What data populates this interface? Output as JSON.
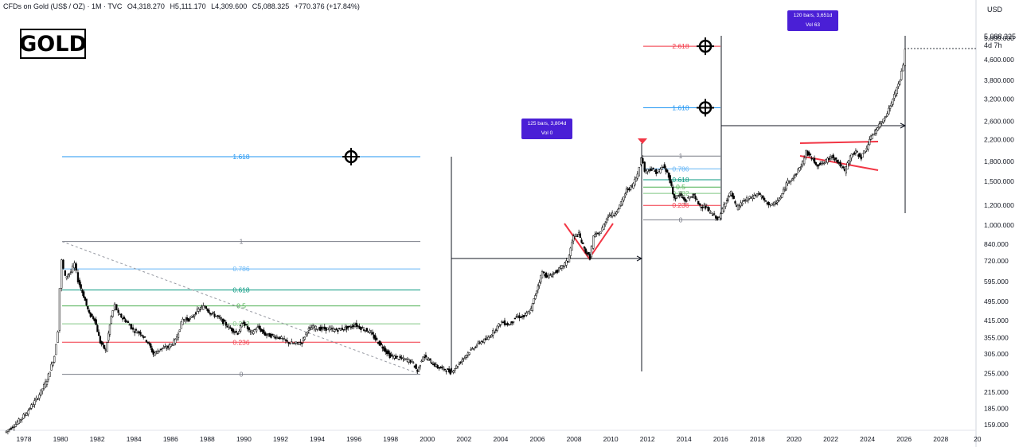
{
  "header": {
    "symbol": "CFDs on Gold (US$ / OZ) · 1M · TVC",
    "open": "O4,318.270",
    "high": "H5,111.170",
    "low": "L4,309.600",
    "close": "C5,088.325",
    "change": "+770.376 (+17.84%)"
  },
  "logo_text": "GOLD",
  "currency": "USD",
  "price_label": {
    "value": "5,088.325",
    "countdown": "4d 7h"
  },
  "measures": [
    {
      "bars": "125 bars, 3,804d",
      "vol": "Vol 0"
    },
    {
      "bars": "120 bars, 3,651d",
      "vol": "Vol 63"
    }
  ],
  "colors": {
    "bull": "#ffffff",
    "bear": "#000000",
    "fib_1": "#787b86",
    "fib_786": "#64b5f6",
    "fib_618": "#089981",
    "fib_5": "#4caf50",
    "fib_382": "#81c784",
    "fib_236": "#f23645",
    "fib_ext": "#2196f3",
    "fib_2618": "#f23645",
    "pattern": "#f23645",
    "measure_bg": "#4a1fd6"
  },
  "chart_data": {
    "type": "candlestick",
    "title": "GOLD",
    "y_scale": "log",
    "y_ticks": [
      "5,600.000",
      "4,600.000",
      "3,800.000",
      "3,200.000",
      "2,600.000",
      "2,200.000",
      "1,800.000",
      "1,500.000",
      "1,200.000",
      "1,000.000",
      "840.000",
      "720.000",
      "595.000",
      "495.000",
      "415.000",
      "355.000",
      "305.000",
      "255.000",
      "215.000",
      "185.000",
      "159.000"
    ],
    "x_ticks": [
      "1978",
      "1980",
      "1982",
      "1984",
      "1986",
      "1988",
      "1990",
      "1992",
      "1994",
      "1996",
      "1998",
      "2000",
      "2002",
      "2004",
      "2006",
      "2008",
      "2010",
      "2012",
      "2014",
      "2016",
      "2018",
      "2020",
      "2022",
      "2024",
      "2026",
      "2028",
      "20"
    ],
    "price_path": [
      [
        1977.0,
        148
      ],
      [
        1977.6,
        160
      ],
      [
        1978.2,
        178
      ],
      [
        1978.8,
        205
      ],
      [
        1979.3,
        240
      ],
      [
        1979.7,
        300
      ],
      [
        1979.9,
        380
      ],
      [
        1980.0,
        560
      ],
      [
        1980.1,
        720
      ],
      [
        1980.3,
        620
      ],
      [
        1980.6,
        650
      ],
      [
        1980.8,
        700
      ],
      [
        1981.0,
        600
      ],
      [
        1981.3,
        520
      ],
      [
        1981.6,
        440
      ],
      [
        1981.9,
        420
      ],
      [
        1982.2,
        340
      ],
      [
        1982.5,
        315
      ],
      [
        1982.8,
        430
      ],
      [
        1983.0,
        480
      ],
      [
        1983.2,
        440
      ],
      [
        1983.5,
        420
      ],
      [
        1983.8,
        400
      ],
      [
        1984.0,
        380
      ],
      [
        1984.4,
        370
      ],
      [
        1984.8,
        340
      ],
      [
        1985.1,
        305
      ],
      [
        1985.5,
        320
      ],
      [
        1985.9,
        325
      ],
      [
        1986.3,
        345
      ],
      [
        1986.7,
        420
      ],
      [
        1987.1,
        420
      ],
      [
        1987.5,
        455
      ],
      [
        1987.9,
        475
      ],
      [
        1988.2,
        445
      ],
      [
        1988.6,
        430
      ],
      [
        1988.9,
        410
      ],
      [
        1989.3,
        385
      ],
      [
        1989.7,
        370
      ],
      [
        1990.0,
        410
      ],
      [
        1990.4,
        370
      ],
      [
        1990.8,
        390
      ],
      [
        1991.2,
        365
      ],
      [
        1991.6,
        360
      ],
      [
        1992.0,
        355
      ],
      [
        1992.4,
        340
      ],
      [
        1992.8,
        335
      ],
      [
        1993.2,
        340
      ],
      [
        1993.5,
        380
      ],
      [
        1993.8,
        390
      ],
      [
        1994.2,
        385
      ],
      [
        1994.6,
        385
      ],
      [
        1995.0,
        380
      ],
      [
        1995.4,
        385
      ],
      [
        1995.8,
        390
      ],
      [
        1996.1,
        400
      ],
      [
        1996.5,
        385
      ],
      [
        1996.9,
        375
      ],
      [
        1997.2,
        350
      ],
      [
        1997.6,
        325
      ],
      [
        1998.0,
        300
      ],
      [
        1998.4,
        295
      ],
      [
        1998.8,
        290
      ],
      [
        1999.2,
        285
      ],
      [
        1999.5,
        260
      ],
      [
        1999.8,
        300
      ],
      [
        2000.2,
        285
      ],
      [
        2000.6,
        270
      ],
      [
        2001.0,
        265
      ],
      [
        2001.3,
        258
      ],
      [
        2001.7,
        275
      ],
      [
        2002.1,
        300
      ],
      [
        2002.5,
        320
      ],
      [
        2002.9,
        340
      ],
      [
        2003.3,
        350
      ],
      [
        2003.7,
        380
      ],
      [
        2004.1,
        410
      ],
      [
        2004.5,
        400
      ],
      [
        2004.9,
        430
      ],
      [
        2005.3,
        430
      ],
      [
        2005.7,
        460
      ],
      [
        2006.0,
        550
      ],
      [
        2006.3,
        650
      ],
      [
        2006.6,
        620
      ],
      [
        2006.9,
        640
      ],
      [
        2007.3,
        670
      ],
      [
        2007.7,
        720
      ],
      [
        2008.0,
        900
      ],
      [
        2008.3,
        920
      ],
      [
        2008.6,
        800
      ],
      [
        2008.9,
        740
      ],
      [
        2009.1,
        900
      ],
      [
        2009.5,
        940
      ],
      [
        2009.9,
        1100
      ],
      [
        2010.2,
        1100
      ],
      [
        2010.6,
        1220
      ],
      [
        2010.9,
        1380
      ],
      [
        2011.2,
        1430
      ],
      [
        2011.5,
        1600
      ],
      [
        2011.7,
        1880
      ],
      [
        2011.9,
        1650
      ],
      [
        2012.2,
        1680
      ],
      [
        2012.6,
        1620
      ],
      [
        2012.9,
        1720
      ],
      [
        2013.2,
        1580
      ],
      [
        2013.5,
        1280
      ],
      [
        2013.8,
        1320
      ],
      [
        2014.1,
        1250
      ],
      [
        2014.5,
        1320
      ],
      [
        2014.9,
        1200
      ],
      [
        2015.2,
        1180
      ],
      [
        2015.6,
        1100
      ],
      [
        2015.95,
        1060
      ],
      [
        2016.3,
        1250
      ],
      [
        2016.6,
        1350
      ],
      [
        2016.9,
        1170
      ],
      [
        2017.3,
        1250
      ],
      [
        2017.7,
        1290
      ],
      [
        2018.1,
        1340
      ],
      [
        2018.5,
        1230
      ],
      [
        2018.9,
        1200
      ],
      [
        2019.3,
        1290
      ],
      [
        2019.7,
        1500
      ],
      [
        2020.1,
        1580
      ],
      [
        2020.5,
        1780
      ],
      [
        2020.7,
        1960
      ],
      [
        2021.0,
        1850
      ],
      [
        2021.3,
        1740
      ],
      [
        2021.7,
        1780
      ],
      [
        2022.1,
        1900
      ],
      [
        2022.4,
        1800
      ],
      [
        2022.8,
        1640
      ],
      [
        2023.1,
        1880
      ],
      [
        2023.4,
        1960
      ],
      [
        2023.7,
        1870
      ],
      [
        2024.0,
        2050
      ],
      [
        2024.3,
        2300
      ],
      [
        2024.6,
        2450
      ],
      [
        2024.9,
        2650
      ],
      [
        2025.2,
        2900
      ],
      [
        2025.5,
        3300
      ],
      [
        2025.8,
        3800
      ],
      [
        2026.0,
        4400
      ],
      [
        2026.1,
        5088
      ]
    ]
  }
}
